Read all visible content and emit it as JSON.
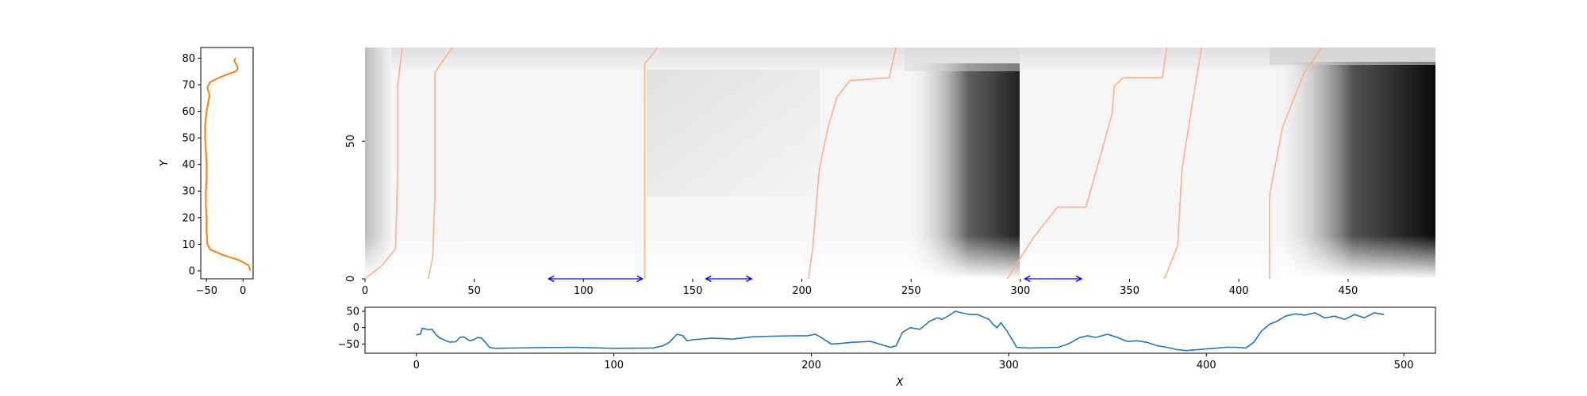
{
  "chart_data": [
    {
      "type": "line",
      "panel": "left-vertical-profile",
      "ylabel": "Y",
      "xlabel": "",
      "xlim": [
        -58,
        14
      ],
      "ylim": [
        -3,
        84
      ],
      "xticks": [
        -50,
        0
      ],
      "yticks": [
        0,
        10,
        20,
        30,
        40,
        50,
        60,
        70,
        80
      ],
      "series": [
        {
          "color": "#ff7f0e",
          "points": [
            [
              10,
              0
            ],
            [
              8,
              2
            ],
            [
              -5,
              4
            ],
            [
              -28,
              6
            ],
            [
              -45,
              8
            ],
            [
              -49,
              10
            ],
            [
              -50,
              15
            ],
            [
              -50,
              20
            ],
            [
              -51,
              25
            ],
            [
              -51,
              30
            ],
            [
              -50,
              35
            ],
            [
              -50,
              40
            ],
            [
              -51,
              45
            ],
            [
              -52,
              50
            ],
            [
              -52,
              55
            ],
            [
              -50,
              60
            ],
            [
              -48,
              63
            ],
            [
              -46,
              66
            ],
            [
              -49,
              69
            ],
            [
              -45,
              71
            ],
            [
              -30,
              73
            ],
            [
              -10,
              75
            ],
            [
              -7,
              76
            ],
            [
              -8,
              77
            ],
            [
              -10,
              78
            ],
            [
              -12,
              79
            ],
            [
              -10,
              80
            ]
          ]
        }
      ]
    },
    {
      "type": "heatmap",
      "panel": "main-image",
      "xlim": [
        0,
        490
      ],
      "ylim": [
        0,
        84
      ],
      "xticks": [
        0,
        50,
        100,
        150,
        200,
        250,
        300,
        350,
        400,
        450
      ],
      "yticks": [
        0,
        50
      ],
      "colormap": "gray-reversed",
      "dark_regions": [
        {
          "x": [
            255,
            300
          ],
          "y": [
            25,
            75
          ],
          "intensity": 0.7
        },
        {
          "x": [
            430,
            490
          ],
          "y": [
            25,
            78
          ],
          "intensity": 0.85
        },
        {
          "x": [
            0,
            10
          ],
          "y": [
            0,
            84
          ],
          "intensity": 0.25
        },
        {
          "x": [
            120,
            210
          ],
          "y": [
            40,
            75
          ],
          "intensity": 0.15
        }
      ],
      "boundary_lines": {
        "color": "#ffb08a",
        "lines": [
          [
            [
              0,
              0
            ],
            [
              8,
              5
            ],
            [
              14,
              11
            ],
            [
              15,
              40
            ],
            [
              15,
              70
            ],
            [
              17,
              84
            ]
          ],
          [
            [
              29,
              0
            ],
            [
              31,
              8
            ],
            [
              32,
              30
            ],
            [
              32,
              75
            ],
            [
              40,
              84
            ]
          ],
          [
            [
              128,
              0
            ],
            [
              128,
              50
            ],
            [
              128,
              78
            ],
            [
              134,
              84
            ]
          ],
          [
            [
              203,
              0
            ],
            [
              205,
              12
            ],
            [
              208,
              40
            ],
            [
              212,
              55
            ],
            [
              216,
              66
            ],
            [
              222,
              72
            ],
            [
              240,
              73
            ],
            [
              243,
              84
            ]
          ],
          [
            [
              294,
              0
            ],
            [
              306,
              15
            ],
            [
              317,
              26
            ],
            [
              330,
              26
            ],
            [
              335,
              40
            ],
            [
              342,
              60
            ],
            [
              343,
              70
            ],
            [
              347,
              73
            ],
            [
              365,
              73
            ],
            [
              367,
              84
            ]
          ],
          [
            [
              366,
              0
            ],
            [
              372,
              12
            ],
            [
              374,
              40
            ],
            [
              380,
              70
            ],
            [
              383,
              84
            ]
          ],
          [
            [
              414,
              0
            ],
            [
              414,
              30
            ],
            [
              420,
              55
            ],
            [
              430,
              75
            ],
            [
              438,
              84
            ]
          ]
        ]
      },
      "arrows": {
        "color": "#0000ff",
        "y": 0,
        "spans": [
          [
            84,
            127
          ],
          [
            156,
            177
          ],
          [
            302,
            328
          ]
        ]
      }
    },
    {
      "type": "line",
      "panel": "bottom-horizontal-profile",
      "xlabel": "X",
      "ylabel": "",
      "xlim": [
        -26,
        516
      ],
      "ylim": [
        -78,
        62
      ],
      "xticks": [
        0,
        100,
        200,
        300,
        400,
        500
      ],
      "yticks": [
        50,
        0,
        -50
      ],
      "series": [
        {
          "color": "#1f77b4",
          "points": [
            [
              0,
              -22
            ],
            [
              2,
              -20
            ],
            [
              3,
              -2
            ],
            [
              6,
              -6
            ],
            [
              8,
              -5
            ],
            [
              10,
              -22
            ],
            [
              12,
              -32
            ],
            [
              15,
              -40
            ],
            [
              17,
              -44
            ],
            [
              20,
              -43
            ],
            [
              22,
              -30
            ],
            [
              24,
              -28
            ],
            [
              27,
              -40
            ],
            [
              29,
              -37
            ],
            [
              31,
              -30
            ],
            [
              33,
              -32
            ],
            [
              35,
              -45
            ],
            [
              37,
              -60
            ],
            [
              40,
              -63
            ],
            [
              60,
              -61
            ],
            [
              80,
              -60
            ],
            [
              100,
              -63
            ],
            [
              120,
              -62
            ],
            [
              125,
              -55
            ],
            [
              128,
              -45
            ],
            [
              132,
              -20
            ],
            [
              135,
              -25
            ],
            [
              137,
              -40
            ],
            [
              140,
              -37
            ],
            [
              150,
              -32
            ],
            [
              160,
              -35
            ],
            [
              170,
              -28
            ],
            [
              180,
              -26
            ],
            [
              190,
              -25
            ],
            [
              198,
              -25
            ],
            [
              202,
              -20
            ],
            [
              205,
              -30
            ],
            [
              210,
              -50
            ],
            [
              215,
              -48
            ],
            [
              220,
              -45
            ],
            [
              230,
              -42
            ],
            [
              240,
              -60
            ],
            [
              243,
              -55
            ],
            [
              246,
              -15
            ],
            [
              250,
              0
            ],
            [
              255,
              -5
            ],
            [
              260,
              20
            ],
            [
              264,
              30
            ],
            [
              266,
              25
            ],
            [
              270,
              38
            ],
            [
              273,
              50
            ],
            [
              276,
              45
            ],
            [
              280,
              40
            ],
            [
              284,
              40
            ],
            [
              290,
              25
            ],
            [
              292,
              10
            ],
            [
              294,
              0
            ],
            [
              296,
              15
            ],
            [
              299,
              -10
            ],
            [
              301,
              -30
            ],
            [
              304,
              -60
            ],
            [
              310,
              -62
            ],
            [
              325,
              -60
            ],
            [
              330,
              -50
            ],
            [
              336,
              -30
            ],
            [
              340,
              -25
            ],
            [
              344,
              -30
            ],
            [
              350,
              -20
            ],
            [
              355,
              -30
            ],
            [
              360,
              -42
            ],
            [
              365,
              -40
            ],
            [
              370,
              -45
            ],
            [
              375,
              -55
            ],
            [
              380,
              -60
            ],
            [
              385,
              -67
            ],
            [
              390,
              -70
            ],
            [
              400,
              -65
            ],
            [
              410,
              -60
            ],
            [
              415,
              -60
            ],
            [
              420,
              -62
            ],
            [
              424,
              -45
            ],
            [
              428,
              -10
            ],
            [
              432,
              10
            ],
            [
              436,
              20
            ],
            [
              440,
              35
            ],
            [
              445,
              42
            ],
            [
              450,
              38
            ],
            [
              455,
              45
            ],
            [
              460,
              30
            ],
            [
              465,
              35
            ],
            [
              470,
              25
            ],
            [
              475,
              40
            ],
            [
              480,
              30
            ],
            [
              485,
              45
            ],
            [
              490,
              40
            ]
          ]
        }
      ]
    }
  ]
}
